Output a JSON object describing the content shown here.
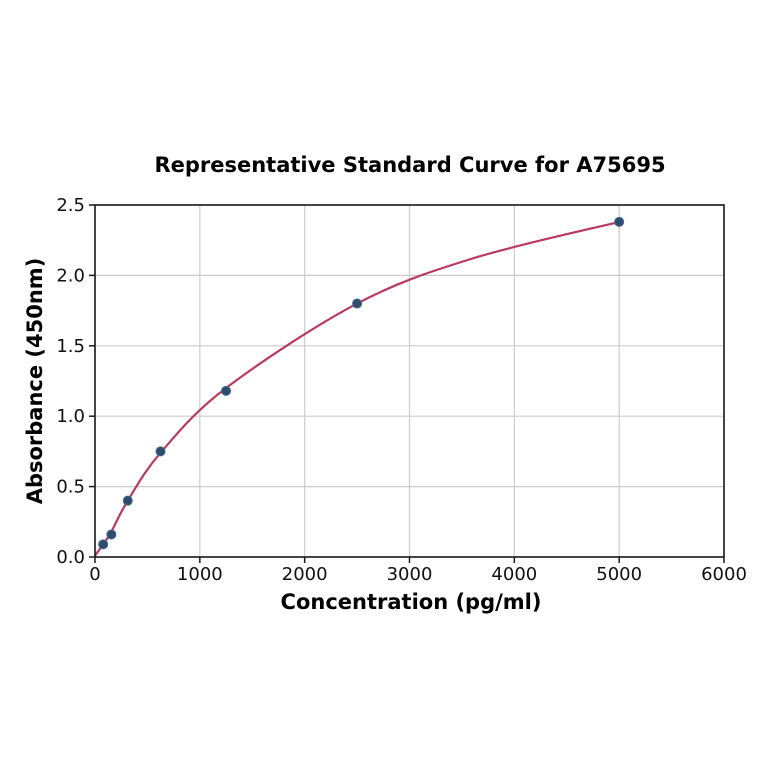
{
  "chart_data": {
    "type": "scatter",
    "title": "Representative Standard Curve for A75695",
    "xlabel": "Concentration (pg/ml)",
    "ylabel": "Absorbance (450nm)",
    "xlim": [
      0,
      6000
    ],
    "ylim": [
      0,
      2.5
    ],
    "grid": true,
    "legend": "none",
    "xticks": [
      {
        "value": 0,
        "label": "0"
      },
      {
        "value": 1000,
        "label": "1000"
      },
      {
        "value": 2000,
        "label": "2000"
      },
      {
        "value": 3000,
        "label": "3000"
      },
      {
        "value": 4000,
        "label": "4000"
      },
      {
        "value": 5000,
        "label": "5000"
      },
      {
        "value": 6000,
        "label": "6000"
      }
    ],
    "yticks": [
      {
        "value": 0.0,
        "label": "0.0"
      },
      {
        "value": 0.5,
        "label": "0.5"
      },
      {
        "value": 1.0,
        "label": "1.0"
      },
      {
        "value": 1.5,
        "label": "1.5"
      },
      {
        "value": 2.0,
        "label": "2.0"
      },
      {
        "value": 2.5,
        "label": "2.5"
      }
    ],
    "points": [
      {
        "x": 78.13,
        "y": 0.09
      },
      {
        "x": 156.25,
        "y": 0.16
      },
      {
        "x": 312.5,
        "y": 0.4
      },
      {
        "x": 625,
        "y": 0.75
      },
      {
        "x": 1250,
        "y": 1.18
      },
      {
        "x": 2500,
        "y": 1.8
      },
      {
        "x": 5000,
        "y": 2.38
      }
    ],
    "fit_curve": [
      {
        "x": 0,
        "y": 0.01
      },
      {
        "x": 78,
        "y": 0.09
      },
      {
        "x": 156,
        "y": 0.18
      },
      {
        "x": 312.5,
        "y": 0.4
      },
      {
        "x": 625,
        "y": 0.74
      },
      {
        "x": 1250,
        "y": 1.2
      },
      {
        "x": 2500,
        "y": 1.8
      },
      {
        "x": 3600,
        "y": 2.12
      },
      {
        "x": 5000,
        "y": 2.38
      }
    ],
    "colors": {
      "curve": "#b9395f",
      "marker_fill": "#2e4c6d",
      "marker_edge": "#46688c",
      "grid": "#cccccc",
      "axis": "#1a1a1a",
      "text": "#111111",
      "background": "#ffffff"
    },
    "marker_radius": 4.5,
    "curve_width": 2.2
  }
}
